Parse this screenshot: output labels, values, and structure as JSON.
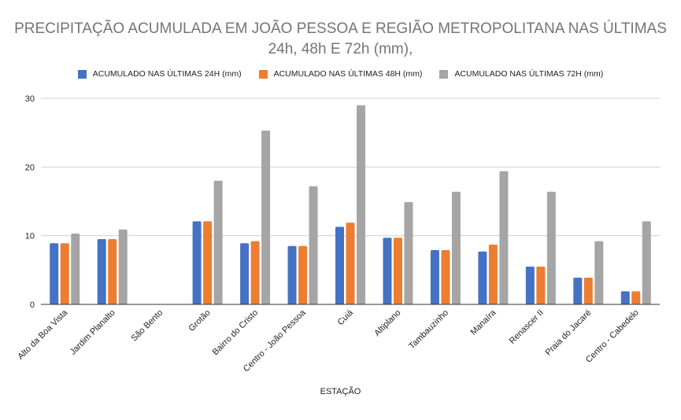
{
  "chart_data": {
    "type": "bar",
    "title": "PRECIPITAÇÃO ACUMULADA EM JOÃO PESSOA E REGIÃO METROPOLITANA NAS ÚLTIMAS 24h, 48h E 72h (mm),",
    "xlabel": "ESTAÇÃO",
    "ylabel": "",
    "ylim": [
      0,
      30
    ],
    "yticks": [
      0,
      10,
      20,
      30
    ],
    "grid": true,
    "legend_position": "top",
    "categories": [
      "Alto da Boa Vista",
      "Jardim Planalto",
      "São Bento",
      "Grotão",
      "Bairro do Cristo",
      "Centro - João Pessoa",
      "Cuiá",
      "Altiplano",
      "Tambauzinho",
      "Manaíra",
      "Renascer II",
      "Praia do Jacaré",
      "Centro - Cabedelo"
    ],
    "series": [
      {
        "name": "ACUMULADO NAS ÚLTIMAS 24H (mm)",
        "color": "#4472c4",
        "values": [
          8.9,
          9.5,
          0,
          12.1,
          8.9,
          8.5,
          11.3,
          9.7,
          7.9,
          7.7,
          5.5,
          3.9,
          1.9
        ]
      },
      {
        "name": "ACUMULADO NAS ÚLTIMAS 48H (mm)",
        "color": "#ed7d31",
        "values": [
          8.9,
          9.5,
          0,
          12.1,
          9.2,
          8.5,
          11.9,
          9.7,
          7.9,
          8.7,
          5.5,
          3.9,
          1.9
        ]
      },
      {
        "name": "ACUMULADO NAS ÚLTIMAS 72H (mm)",
        "color": "#a5a5a5",
        "values": [
          10.3,
          10.9,
          0,
          18.0,
          25.3,
          17.2,
          29.0,
          14.9,
          16.4,
          19.4,
          16.4,
          9.2,
          12.1
        ]
      }
    ]
  }
}
